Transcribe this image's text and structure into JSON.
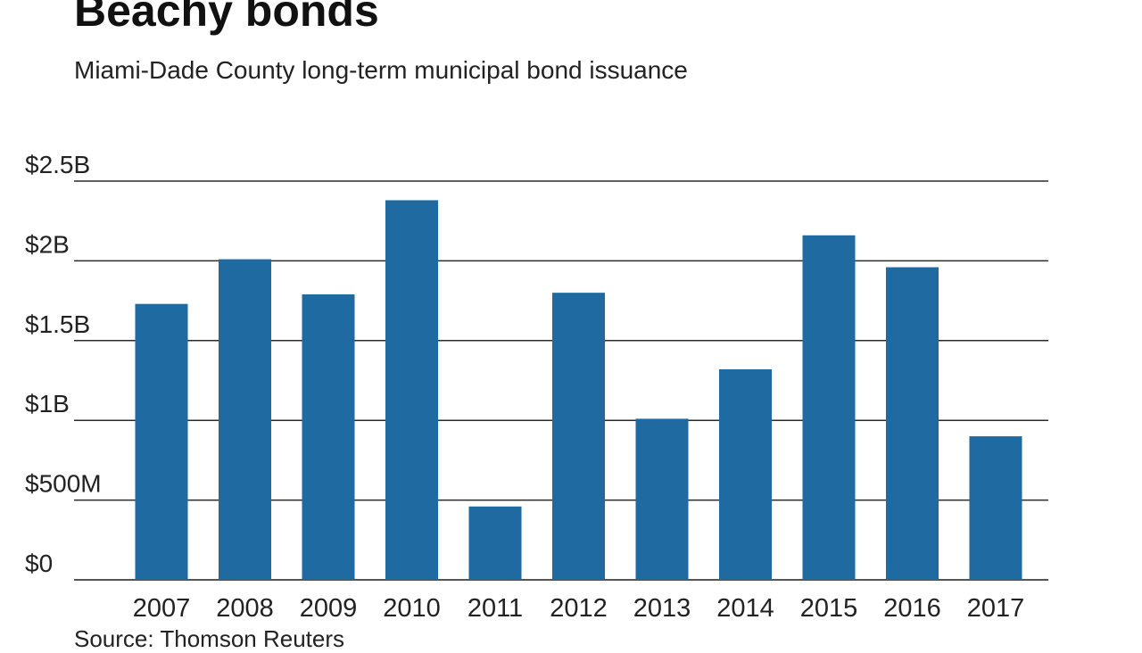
{
  "chart_data": {
    "type": "bar",
    "title": "Beachy bonds",
    "subtitle": "Miami-Dade County long-term municipal bond issuance",
    "source": "Source: Thomson Reuters",
    "categories": [
      "2007",
      "2008",
      "2009",
      "2010",
      "2011",
      "2012",
      "2013",
      "2014",
      "2015",
      "2016",
      "2017"
    ],
    "values": [
      1.73,
      2.01,
      1.79,
      2.38,
      0.46,
      1.8,
      1.01,
      1.32,
      2.16,
      1.96,
      0.9
    ],
    "units": "billions USD",
    "ylim": [
      0,
      2.5
    ],
    "yticks": [
      {
        "value": 0,
        "label": "$0"
      },
      {
        "value": 0.5,
        "label": "$500M"
      },
      {
        "value": 1,
        "label": "$1B"
      },
      {
        "value": 1.5,
        "label": "$1.5B"
      },
      {
        "value": 2,
        "label": "$2B"
      },
      {
        "value": 2.5,
        "label": "$2.5B"
      }
    ],
    "grid": true,
    "bar_color": "#1f6aa0"
  }
}
